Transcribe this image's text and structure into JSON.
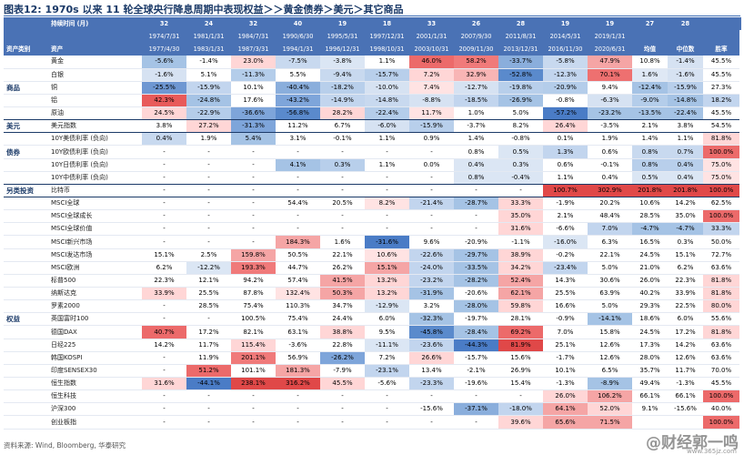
{
  "title": "图表12:  1970s 以来 11 轮全球央行降息周期中表现权益＞＞黄金债券＞美元＞其它商品",
  "source": "资料来源: Wind, Bloomberg, 华泰研究",
  "watermark": "@财经郭一鸣",
  "watermark_url": "www.365jz.com",
  "header": {
    "duration_label": "持续时间 (月)",
    "asset_class_label": "资产类别",
    "asset_label": "资产",
    "durations": [
      "32",
      "24",
      "32",
      "40",
      "19",
      "18",
      "33",
      "26",
      "28",
      "19",
      "19",
      "27",
      "28"
    ],
    "start_dates": [
      "1974/7/31",
      "1981/1/31",
      "1984/7/31",
      "1990/6/30",
      "1995/5/31",
      "1997/12/31",
      "2001/1/31",
      "2007/9/30",
      "2011/8/31",
      "2014/5/31",
      "2019/1/31",
      "",
      ""
    ],
    "end_dates": [
      "1977/4/30",
      "1983/1/31",
      "1987/3/31",
      "1994/1/31",
      "1996/12/31",
      "1998/10/31",
      "2003/10/31",
      "2009/11/30",
      "2013/12/31",
      "2016/11/30",
      "2020/6/31",
      "均值",
      "中位数"
    ],
    "win_rate_label": "胜率"
  },
  "categories": {
    "commodity": "商品",
    "usd": "美元",
    "bond": "债券",
    "alt": "另类投资",
    "equity": "权益"
  },
  "rows": [
    {
      "label": "黄金",
      "values": [
        "-5.6%",
        "-1.4%",
        "23.0%",
        "-7.5%",
        "-3.8%",
        "1.1%",
        "46.0%",
        "58.2%",
        "-33.7%",
        "-5.8%",
        "47.9%",
        "10.8%",
        "-1.4%",
        "45.5%"
      ],
      "colors": [
        "#a5c3e5",
        "",
        "#ffd6d6",
        "#c8d9ef",
        "#dbe6f4",
        "",
        "#ec6a6a",
        "#f07a7a",
        "#8aaedc",
        "#c8d9ef",
        "#f5a5a5",
        "",
        "#d6e2f2",
        ""
      ]
    },
    {
      "label": "白银",
      "values": [
        "-1.6%",
        "5.1%",
        "-11.3%",
        "5.5%",
        "-9.4%",
        "-15.7%",
        "7.2%",
        "32.9%",
        "-52.8%",
        "-12.3%",
        "70.1%",
        "1.6%",
        "-1.6%",
        "45.5%"
      ],
      "colors": [
        "#d6e2f2",
        "",
        "#b4cdea",
        "",
        "#c8d9ef",
        "#b8cfeb",
        "#ffd6d6",
        "#f8b5b5",
        "#5a8acc",
        "#c2d5ee",
        "#ee7070",
        "#dfe8f5",
        "#d6e2f2",
        ""
      ]
    },
    {
      "label": "铜",
      "values": [
        "-25.5%",
        "-15.9%",
        "10.1%",
        "-40.4%",
        "-18.2%",
        "-10.0%",
        "7.4%",
        "-12.7%",
        "-19.8%",
        "-20.9%",
        "9.4%",
        "-12.4%",
        "-15.9%",
        "27.3%"
      ],
      "colors": [
        "#6e97d2",
        "#c2d5ee",
        "",
        "#8aaedc",
        "#b8cfeb",
        "#d6e2f2",
        "#ffe3e3",
        "#d6e2f2",
        "#b8cfeb",
        "#b4cdea",
        "",
        "#a5c3e5",
        "#b8cfeb",
        ""
      ]
    },
    {
      "label": "铝",
      "values": [
        "42.3%",
        "-24.8%",
        "17.6%",
        "-43.2%",
        "-14.9%",
        "-14.8%",
        "-8.8%",
        "-18.5%",
        "-26.9%",
        "-0.8%",
        "-6.3%",
        "-9.0%",
        "-14.8%",
        "18.2%"
      ],
      "colors": [
        "#e85a5a",
        "#a5c3e5",
        "",
        "#7ea5da",
        "#c2d5ee",
        "#c8d9ef",
        "#d6e2f2",
        "#c2d5ee",
        "#a5c3e5",
        "",
        "#d6e2f2",
        "#b4cdea",
        "#a5c3e5",
        "#c2d5ee"
      ]
    },
    {
      "label": "原油",
      "values": [
        "24.5%",
        "-22.9%",
        "-36.6%",
        "-56.8%",
        "28.2%",
        "-22.4%",
        "11.7%",
        "1.0%",
        "5.0%",
        "-57.2%",
        "-23.2%",
        "-13.5%",
        "-22.4%",
        "45.5%"
      ],
      "colors": [
        "#ffd6d6",
        "#b4cdea",
        "#7ea5da",
        "#5a8acc",
        "#ffd6d6",
        "#b4cdea",
        "#ffe3e3",
        "",
        "",
        "#4a7cc6",
        "#a5c3e5",
        "#a5c3e5",
        "#a5c3e5",
        ""
      ]
    },
    {
      "label": "美元指数",
      "values": [
        "3.8%",
        "27.2%",
        "-31.3%",
        "11.2%",
        "6.7%",
        "-6.0%",
        "-15.9%",
        "-3.7%",
        "8.2%",
        "26.4%",
        "-3.5%",
        "2.1%",
        "3.8%",
        "54.5%"
      ],
      "colors": [
        "",
        "#ffd6d6",
        "#7ea5da",
        "",
        "",
        "#d6e2f2",
        "#b8cfeb",
        "",
        "",
        "#ffd6d6",
        "",
        "",
        "",
        ""
      ]
    },
    {
      "label": "10Y美债利率 (负向)",
      "values": [
        "0.4%",
        "1.9%",
        "5.4%",
        "3.1%",
        "-0.1%",
        "1.1%",
        "0.9%",
        "1.4%",
        "-0.8%",
        "0.1%",
        "1.9%",
        "1.4%",
        "1.1%",
        "81.8%"
      ],
      "colors": [
        "#c8d9ef",
        "",
        "#a5c3e5",
        "",
        "",
        "",
        "",
        "",
        "",
        "",
        "",
        "",
        "",
        "#ffd6d6"
      ]
    },
    {
      "label": "10Y欧债利率 (负向)",
      "values": [
        "-",
        "-",
        "-",
        "-",
        "-",
        "-",
        "-",
        "0.8%",
        "0.5%",
        "1.3%",
        "0.6%",
        "0.8%",
        "0.7%",
        "100.0%"
      ],
      "colors": [
        "",
        "",
        "",
        "",
        "",
        "",
        "",
        "",
        "#dbe6f4",
        "#c2d5ee",
        "",
        "#c8d9ef",
        "#c8d9ef",
        "#ec6a6a"
      ]
    },
    {
      "label": "10Y日债利率 (负向)",
      "values": [
        "-",
        "-",
        "-",
        "4.1%",
        "0.3%",
        "1.1%",
        "0.0%",
        "0.4%",
        "0.3%",
        "0.6%",
        "-0.1%",
        "0.8%",
        "0.4%",
        "75.0%"
      ],
      "colors": [
        "",
        "",
        "",
        "#a5c3e5",
        "#b8cfeb",
        "",
        "",
        "#dbe6f4",
        "#dbe6f4",
        "",
        "",
        "#b8cfeb",
        "#b8cfeb",
        "#ffe3e3"
      ]
    },
    {
      "label": "10Y中债利率 (负向)",
      "values": [
        "-",
        "-",
        "-",
        "-",
        "-",
        "-",
        "-",
        "0.8%",
        "-0.4%",
        "1.1%",
        "0.4%",
        "0.5%",
        "0.4%",
        "75.0%"
      ],
      "colors": [
        "",
        "",
        "",
        "",
        "",
        "",
        "",
        "#dbe6f4",
        "#dbe6f4",
        "",
        "",
        "#dbe6f4",
        "#dbe6f4",
        "#ffe3e3"
      ]
    },
    {
      "label": "比特币",
      "values": [
        "-",
        "-",
        "-",
        "-",
        "-",
        "-",
        "-",
        "-",
        "-",
        "100.7%",
        "302.9%",
        "201.8%",
        "201.8%",
        "100.0%"
      ],
      "colors": [
        "",
        "",
        "",
        "",
        "",
        "",
        "",
        "",
        "",
        "#e04848",
        "#e04848",
        "#e04848",
        "#e04848",
        "#e04848"
      ]
    },
    {
      "label": "MSCI全球",
      "values": [
        "-",
        "-",
        "-",
        "54.4%",
        "20.5%",
        "8.2%",
        "-21.4%",
        "-28.7%",
        "33.3%",
        "-1.9%",
        "20.2%",
        "10.6%",
        "14.2%",
        "62.5%"
      ],
      "colors": [
        "",
        "",
        "",
        "",
        "",
        "#ffe3e3",
        "#c2d5ee",
        "#a5c3e5",
        "#ffd6d6",
        "",
        "",
        "",
        "",
        ""
      ]
    },
    {
      "label": "MSCI全球成长",
      "values": [
        "-",
        "-",
        "-",
        "-",
        "-",
        "-",
        "-",
        "-",
        "35.0%",
        "2.1%",
        "48.4%",
        "28.5%",
        "35.0%",
        "100.0%"
      ],
      "colors": [
        "",
        "",
        "",
        "",
        "",
        "",
        "",
        "",
        "#ffd6d6",
        "",
        "",
        "",
        "",
        "#ec6a6a"
      ]
    },
    {
      "label": "MSCI全球价值",
      "values": [
        "-",
        "-",
        "-",
        "-",
        "-",
        "-",
        "-",
        "-",
        "31.6%",
        "-6.6%",
        "7.0%",
        "-4.7%",
        "-4.7%",
        "33.3%"
      ],
      "colors": [
        "",
        "",
        "",
        "",
        "",
        "",
        "",
        "",
        "#ffd6d6",
        "",
        "#c2d5ee",
        "#a5c3e5",
        "#a5c3e5",
        "#c2d5ee"
      ]
    },
    {
      "label": "MSCI新兴市场",
      "values": [
        "-",
        "-",
        "-",
        "184.3%",
        "1.6%",
        "-31.6%",
        "9.6%",
        "-20.9%",
        "-1.1%",
        "-16.0%",
        "6.3%",
        "16.5%",
        "0.3%",
        "50.0%"
      ],
      "colors": [
        "",
        "",
        "",
        "#f5a5a5",
        "",
        "#4a7cc6",
        "",
        "",
        "",
        "#dbe6f4",
        "",
        "",
        "",
        ""
      ]
    },
    {
      "label": "MSCI发达市场",
      "values": [
        "15.1%",
        "2.5%",
        "159.8%",
        "50.5%",
        "22.1%",
        "10.6%",
        "-22.6%",
        "-29.7%",
        "38.9%",
        "-0.2%",
        "22.1%",
        "24.5%",
        "15.1%",
        "72.7%"
      ],
      "colors": [
        "",
        "",
        "#f5a5a5",
        "",
        "",
        "#ffe3e3",
        "#c2d5ee",
        "#a5c3e5",
        "#ffd6d6",
        "",
        "",
        "",
        "",
        ""
      ]
    },
    {
      "label": "MSCI欧洲",
      "values": [
        "6.2%",
        "-12.2%",
        "193.3%",
        "44.7%",
        "26.2%",
        "15.1%",
        "-24.0%",
        "-33.5%",
        "34.2%",
        "-23.4%",
        "5.0%",
        "21.0%",
        "6.2%",
        "63.6%"
      ],
      "colors": [
        "",
        "#dbe6f4",
        "#f07a7a",
        "",
        "",
        "#f5a5a5",
        "#c2d5ee",
        "#a5c3e5",
        "#ffd6d6",
        "#c2d5ee",
        "",
        "",
        "",
        ""
      ]
    },
    {
      "label": "标普500",
      "values": [
        "22.3%",
        "12.1%",
        "94.2%",
        "57.4%",
        "41.5%",
        "13.2%",
        "-23.2%",
        "-28.2%",
        "52.4%",
        "14.3%",
        "30.6%",
        "26.0%",
        "22.3%",
        "81.8%"
      ],
      "colors": [
        "",
        "",
        "",
        "",
        "#f5a5a5",
        "#ffd6d6",
        "#c2d5ee",
        "#a5c3e5",
        "#f5a5a5",
        "",
        "",
        "",
        "",
        "#ffd6d6"
      ]
    },
    {
      "label": "纳斯达克",
      "values": [
        "33.9%",
        "25.5%",
        "87.8%",
        "132.4%",
        "50.3%",
        "13.2%",
        "-31.9%",
        "-20.6%",
        "62.1%",
        "25.5%",
        "63.9%",
        "40.2%",
        "33.9%",
        "81.8%"
      ],
      "colors": [
        "#ffd6d6",
        "",
        "",
        "#ffe3e3",
        "#f5a5a5",
        "#ffd6d6",
        "#a5c3e5",
        "",
        "#f5a5a5",
        "",
        "",
        "",
        "",
        "#ffd6d6"
      ]
    },
    {
      "label": "罗素2000",
      "values": [
        "-",
        "28.5%",
        "75.4%",
        "110.3%",
        "34.7%",
        "-12.9%",
        "3.2%",
        "-28.0%",
        "59.8%",
        "16.6%",
        "5.0%",
        "29.3%",
        "22.5%",
        "80.0%"
      ],
      "colors": [
        "",
        "",
        "",
        "",
        "",
        "#dbe6f4",
        "",
        "#a5c3e5",
        "#ffd6d6",
        "",
        "",
        "",
        "",
        "#ffd6d6"
      ]
    },
    {
      "label": "英国富时100",
      "values": [
        "-",
        "-",
        "100.5%",
        "75.4%",
        "24.4%",
        "6.0%",
        "-32.3%",
        "-19.7%",
        "28.1%",
        "-0.9%",
        "-14.1%",
        "18.6%",
        "6.0%",
        "55.6%"
      ],
      "colors": [
        "",
        "",
        "",
        "",
        "",
        "",
        "#a5c3e5",
        "",
        "",
        "",
        "#a5c3e5",
        "",
        "",
        ""
      ]
    },
    {
      "label": "德国DAX",
      "values": [
        "40.7%",
        "17.2%",
        "82.1%",
        "63.1%",
        "38.8%",
        "9.5%",
        "-45.8%",
        "-28.4%",
        "69.2%",
        "7.0%",
        "15.8%",
        "24.5%",
        "17.2%",
        "81.8%"
      ],
      "colors": [
        "#ec6a6a",
        "",
        "",
        "",
        "#ffd6d6",
        "",
        "#5a8acc",
        "#a5c3e5",
        "#ec6a6a",
        "",
        "",
        "",
        "",
        "#ffd6d6"
      ]
    },
    {
      "label": "日经225",
      "values": [
        "14.2%",
        "11.7%",
        "115.4%",
        "-3.6%",
        "22.8%",
        "-11.1%",
        "-23.6%",
        "-44.3%",
        "81.9%",
        "25.1%",
        "12.6%",
        "17.3%",
        "14.2%",
        "63.6%"
      ],
      "colors": [
        "",
        "",
        "#ffd6d6",
        "",
        "",
        "#dbe6f4",
        "#c2d5ee",
        "#4a7cc6",
        "#e04848",
        "",
        "",
        "",
        "",
        ""
      ]
    },
    {
      "label": "韩国KOSPI",
      "values": [
        "-",
        "11.9%",
        "201.1%",
        "56.9%",
        "-26.2%",
        "7.2%",
        "26.6%",
        "-15.7%",
        "15.6%",
        "-1.7%",
        "12.6%",
        "28.0%",
        "12.6%",
        "63.6%"
      ],
      "colors": [
        "",
        "",
        "#f07a7a",
        "",
        "#7ea5da",
        "",
        "#ffd6d6",
        "",
        "",
        "",
        "",
        "",
        "",
        ""
      ]
    },
    {
      "label": "印度SENSEX30",
      "values": [
        "-",
        "51.2%",
        "101.1%",
        "181.3%",
        "-7.9%",
        "-23.1%",
        "13.4%",
        "-2.1%",
        "26.9%",
        "10.1%",
        "6.5%",
        "35.7%",
        "11.7%",
        "70.0%"
      ],
      "colors": [
        "",
        "#ec6a6a",
        "",
        "#f5a5a5",
        "",
        "#c2d5ee",
        "",
        "",
        "",
        "",
        "",
        "",
        "",
        ""
      ]
    },
    {
      "label": "恒生指数",
      "values": [
        "31.6%",
        "-44.1%",
        "238.1%",
        "316.2%",
        "45.5%",
        "-5.6%",
        "-23.3%",
        "-19.6%",
        "15.4%",
        "-1.3%",
        "-8.9%",
        "49.4%",
        "-1.3%",
        "45.5%"
      ],
      "colors": [
        "#ffd6d6",
        "#4a7cc6",
        "#e04848",
        "#e04848",
        "#ffd6d6",
        "",
        "#c2d5ee",
        "",
        "",
        "",
        "#a5c3e5",
        "",
        "",
        ""
      ]
    },
    {
      "label": "恒生科技",
      "values": [
        "-",
        "-",
        "-",
        "-",
        "-",
        "-",
        "-",
        "-",
        "-",
        "26.0%",
        "106.2%",
        "66.1%",
        "66.1%",
        "100.0%"
      ],
      "colors": [
        "",
        "",
        "",
        "",
        "",
        "",
        "",
        "",
        "",
        "#ffd6d6",
        "#f5a5a5",
        "",
        "",
        "#ec6a6a"
      ]
    },
    {
      "label": "沪深300",
      "values": [
        "-",
        "-",
        "-",
        "-",
        "-",
        "-",
        "-15.6%",
        "-37.1%",
        "-18.0%",
        "64.1%",
        "52.0%",
        "9.1%",
        "-15.6%",
        "40.0%"
      ],
      "colors": [
        "",
        "",
        "",
        "",
        "",
        "",
        "",
        "#8aaedc",
        "#c2d5ee",
        "#f5a5a5",
        "#ffd6d6",
        "",
        "",
        ""
      ]
    },
    {
      "label": "创业板指",
      "values": [
        "-",
        "-",
        "-",
        "-",
        "-",
        "-",
        "-",
        "-",
        "39.6%",
        "65.6%",
        "71.5%",
        "",
        "",
        "100.0%"
      ],
      "colors": [
        "",
        "",
        "",
        "",
        "",
        "",
        "",
        "",
        "#ffd6d6",
        "#f5a5a5",
        "#f5a5a5",
        "",
        "",
        "#ec6a6a"
      ]
    }
  ]
}
